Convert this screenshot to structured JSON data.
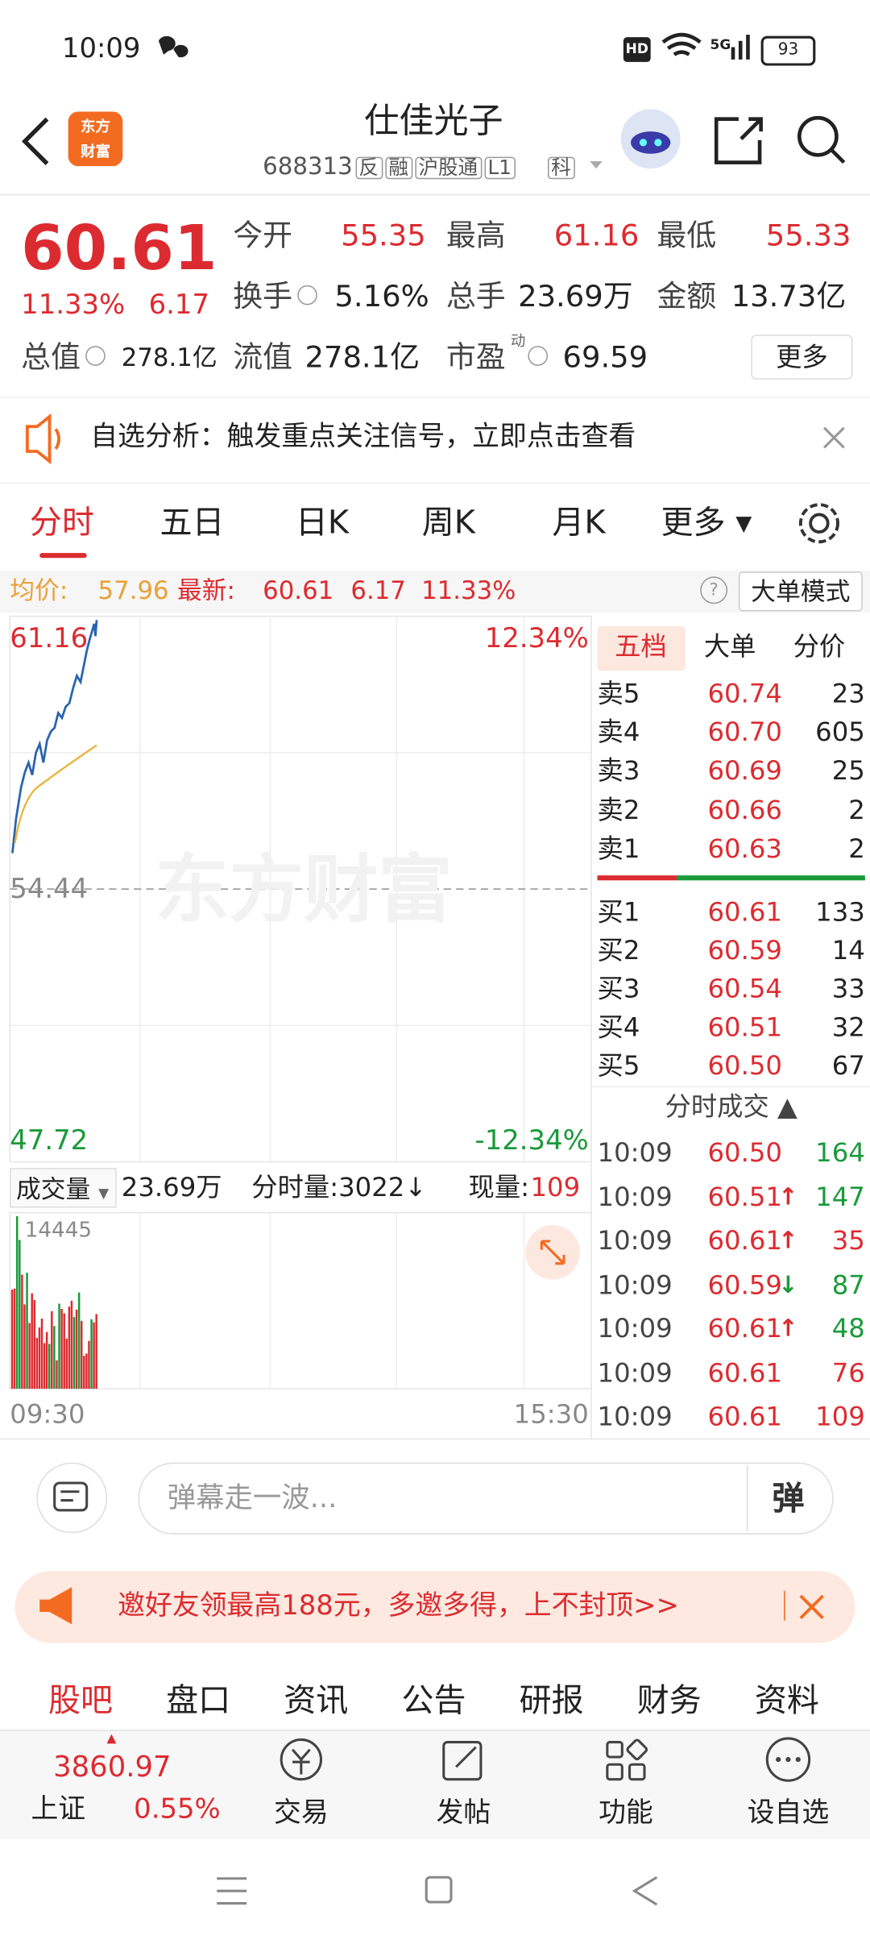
{
  "status_bar": {
    "time": "10:09",
    "hd": "HD",
    "network": "5G",
    "battery": "93"
  },
  "header": {
    "logo": [
      "东方",
      "财富"
    ],
    "title": "仕佳光子",
    "code": "688313",
    "tags": [
      "反",
      "融",
      "沪股通",
      "L1",
      "科"
    ]
  },
  "quote": {
    "price": "60.61",
    "change_pct": "11.33%",
    "change": "6.17",
    "fields": [
      {
        "label": "今开",
        "value": "55.35"
      },
      {
        "label": "最高",
        "value": "61.16"
      },
      {
        "label": "最低",
        "value": "55.33"
      },
      {
        "label": "换手",
        "value": "5.16%"
      },
      {
        "label": "总手",
        "value": "23.69万"
      },
      {
        "label": "金额",
        "value": "13.73亿"
      },
      {
        "label": "总值",
        "value": "278.1亿"
      },
      {
        "label": "流值",
        "value": "278.1亿"
      },
      {
        "label": "市盈",
        "sup": "动",
        "value": "69.59"
      }
    ],
    "more": "更多"
  },
  "notice": "自选分析：触发重点关注信号，立即点击查看",
  "tabs": [
    "分时",
    "五日",
    "日K",
    "周K",
    "月K",
    "更多"
  ],
  "info_bar": {
    "avg_label": "均价:",
    "avg": "57.96",
    "last_label": "最新:",
    "last": "60.61",
    "change": "6.17",
    "change_pct": "11.33%",
    "help": "?",
    "mode": "大单模式"
  },
  "chart": {
    "high": "61.16",
    "high_pct": "12.34%",
    "base": "54.44",
    "low": "47.72",
    "low_pct": "-12.34%",
    "watermark": "东方财富",
    "volume_label": "成交量",
    "volume": "23.69万",
    "minute_volume": "分时量:3022↓",
    "current_label": "现量:",
    "current": "109",
    "volume_max": "14445",
    "time_start": "09:30",
    "time_end": "15:30"
  },
  "order_book": {
    "tabs": [
      "五档",
      "大单",
      "分价"
    ],
    "asks": [
      [
        "卖5",
        "60.74",
        "23"
      ],
      [
        "卖4",
        "60.70",
        "605"
      ],
      [
        "卖3",
        "60.69",
        "25"
      ],
      [
        "卖2",
        "60.66",
        "2"
      ],
      [
        "卖1",
        "60.63",
        "2"
      ]
    ],
    "bids": [
      [
        "买1",
        "60.61",
        "133"
      ],
      [
        "买2",
        "60.59",
        "14"
      ],
      [
        "买3",
        "60.54",
        "33"
      ],
      [
        "买4",
        "60.51",
        "32"
      ],
      [
        "买5",
        "60.50",
        "67"
      ]
    ],
    "trades_title": "分时成交",
    "trades": [
      {
        "time": "10:09",
        "price": "60.50",
        "arrow": "",
        "volume": "164",
        "color": "#1a9a3a"
      },
      {
        "time": "10:09",
        "price": "60.51",
        "arrow": "↑",
        "volume": "147",
        "color": "#1a9a3a"
      },
      {
        "time": "10:09",
        "price": "60.61",
        "arrow": "↑",
        "volume": "35",
        "color": "#dc2b30"
      },
      {
        "time": "10:09",
        "price": "60.59",
        "arrow": "↓",
        "volume": "87",
        "color": "#1a9a3a"
      },
      {
        "time": "10:09",
        "price": "60.61",
        "arrow": "↑",
        "volume": "48",
        "color": "#1a9a3a"
      },
      {
        "time": "10:09",
        "price": "60.61",
        "arrow": "",
        "volume": "76",
        "color": "#dc2b30"
      },
      {
        "time": "10:09",
        "price": "60.61",
        "arrow": "",
        "volume": "109",
        "color": "#dc2b30"
      }
    ]
  },
  "comment": {
    "placeholder": "弹幕走一波...",
    "button": "弹"
  },
  "promo": "邀好友领最高188元，多邀多得，上不封顶>>",
  "bottom_tabs": [
    "股吧",
    "盘口",
    "资讯",
    "公告",
    "研报",
    "财务",
    "资料"
  ],
  "nav": {
    "index_value": "3860.97",
    "index_name": "上证",
    "index_change": "0.55%",
    "buttons": [
      "交易",
      "发帖",
      "功能",
      "设自选"
    ]
  }
}
